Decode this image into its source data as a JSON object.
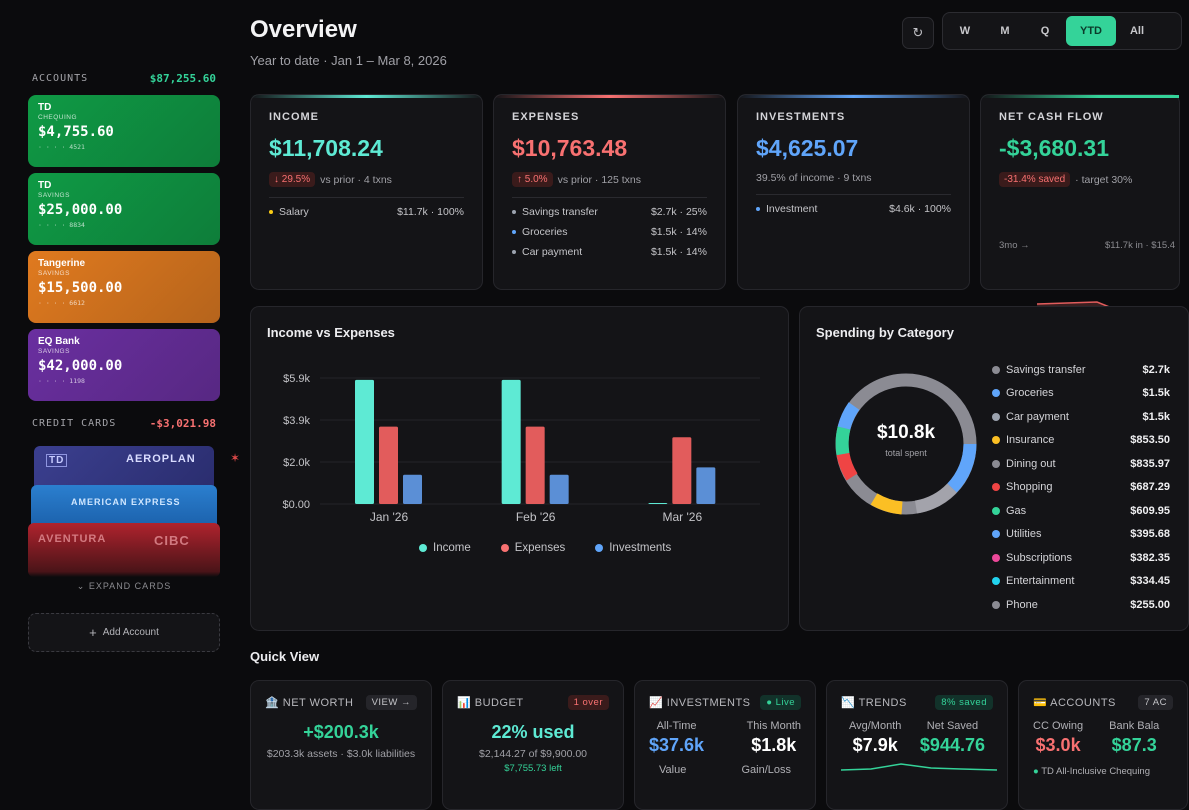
{
  "sidebar": {
    "accounts_label": "ACCOUNTS",
    "accounts_total": "$87,255.60",
    "accounts": [
      {
        "bank": "TD",
        "type": "CHEQUING",
        "balance": "$4,755.60",
        "number": "· · · · 4521",
        "color": "#0f9a45"
      },
      {
        "bank": "TD",
        "type": "SAVINGS",
        "balance": "$25,000.00",
        "number": "· · · · 8834",
        "color": "#0f9a45"
      },
      {
        "bank": "Tangerine",
        "type": "SAVINGS",
        "balance": "$15,500.00",
        "number": "· · · · 6612",
        "color": "#e07a1f"
      },
      {
        "bank": "EQ Bank",
        "type": "SAVINGS",
        "balance": "$42,000.00",
        "number": "· · · · 1198",
        "color": "#6a2fa0"
      }
    ],
    "credit_label": "CREDIT CARDS",
    "credit_total": "-$3,021.98",
    "credit_cards": [
      {
        "brand": "AEROPLAN",
        "logo": "TD"
      },
      {
        "brand": "AMERICAN EXPRESS"
      },
      {
        "brand": "AVENTURA",
        "logo": "CIBC"
      }
    ],
    "expand_label": "EXPAND CARDS",
    "add_account_label": "Add Account"
  },
  "header": {
    "title": "Overview",
    "subtitle": "Year to date · Jan 1 – Mar 8, 2026",
    "refresh_icon": "↻",
    "periods": [
      "W",
      "M",
      "Q",
      "YTD",
      "All"
    ],
    "active_period": "YTD"
  },
  "stats": {
    "income": {
      "label": "INCOME",
      "value": "$11,708.24",
      "change": "29.5%",
      "meta": "vs prior · 4 txns",
      "rows": [
        {
          "name": "Salary",
          "value": "$11.7k · 100%",
          "color": "#facc15"
        }
      ]
    },
    "expenses": {
      "label": "EXPENSES",
      "value": "$10,763.48",
      "change": "5.0%",
      "meta": "vs prior · 125 txns",
      "rows": [
        {
          "name": "Savings transfer",
          "value": "$2.7k · 25%",
          "color": "#9ca3af"
        },
        {
          "name": "Groceries",
          "value": "$1.5k · 14%",
          "color": "#60a5fa"
        },
        {
          "name": "Car payment",
          "value": "$1.5k · 14%",
          "color": "#9ca3af"
        }
      ]
    },
    "investments": {
      "label": "INVESTMENTS",
      "value": "$4,625.07",
      "meta": "39.5% of income · 9 txns",
      "rows": [
        {
          "name": "Investment",
          "value": "$4.6k · 100%",
          "color": "#60a5fa"
        }
      ]
    },
    "netflow": {
      "label": "NET CASH FLOW",
      "value": "-$3,680.31",
      "saved": "-31.4% saved",
      "target": "· target 30%",
      "footer_left": "3mo →",
      "footer_right": "$11.7k in · $15.4"
    }
  },
  "colors": {
    "income": "#5eead4",
    "expenses": "#f87171",
    "investments": "#60a5fa",
    "netflow": "#34d399"
  },
  "income_vs_expenses": {
    "title": "Income vs Expenses",
    "chart_data": {
      "type": "bar",
      "categories": [
        "Jan '26",
        "Feb '26",
        "Mar '26"
      ],
      "series": [
        {
          "name": "Income",
          "values": [
            5853,
            5855,
            0
          ],
          "color": "#5eead4"
        },
        {
          "name": "Expenses",
          "values": [
            3650,
            3650,
            3150
          ],
          "color": "#e25c5c"
        },
        {
          "name": "Investments",
          "values": [
            1380,
            1380,
            1730
          ],
          "color": "#5b8fd6"
        }
      ],
      "ylim": [
        0,
        5853
      ],
      "yticks": [
        "$5.9k",
        "$3.9k",
        "$2.0k",
        "$0.00"
      ],
      "legend": "bottom"
    }
  },
  "spending": {
    "title": "Spending by Category",
    "center_value": "$10.8k",
    "center_label": "total spent",
    "categories": [
      {
        "name": "Savings transfer",
        "value": "$2.7k",
        "color": "#8b8b93"
      },
      {
        "name": "Groceries",
        "value": "$1.5k",
        "color": "#60a5fa"
      },
      {
        "name": "Car payment",
        "value": "$1.5k",
        "color": "#9ca3af"
      },
      {
        "name": "Insurance",
        "value": "$853.50",
        "color": "#fbbf24"
      },
      {
        "name": "Dining out",
        "value": "$835.97",
        "color": "#8b8b93"
      },
      {
        "name": "Shopping",
        "value": "$687.29",
        "color": "#ef4444"
      },
      {
        "name": "Gas",
        "value": "$609.95",
        "color": "#34d399"
      },
      {
        "name": "Utilities",
        "value": "$395.68",
        "color": "#60a5fa"
      },
      {
        "name": "Subscriptions",
        "value": "$382.35",
        "color": "#ec4899"
      },
      {
        "name": "Entertainment",
        "value": "$334.45",
        "color": "#22d3ee"
      },
      {
        "name": "Phone",
        "value": "$255.00",
        "color": "#8b8b93"
      }
    ]
  },
  "quick_view": {
    "title": "Quick View",
    "net_worth": {
      "icon": "🏦",
      "label": "NET WORTH",
      "badge": "VIEW →",
      "value": "+$200.3k",
      "detail": "$203.3k assets · $3.0k liabilities"
    },
    "budget": {
      "icon": "📊",
      "label": "BUDGET",
      "badge": "1 over",
      "value": "22% used",
      "detail": "$2,144.27 of $9,900.00",
      "left": "$7,755.73 left"
    },
    "investments": {
      "icon": "📈",
      "label": "INVESTMENTS",
      "badge": "● Live",
      "k1": "All-Time",
      "v1": "$37.6k",
      "k2": "This Month",
      "v2": "$1.8k",
      "k3": "Value",
      "k4": "Gain/Loss"
    },
    "trends": {
      "icon": "📉",
      "label": "TRENDS",
      "badge": "8% saved",
      "k1": "Avg/Month",
      "v1": "$7.9k",
      "k2": "Net Saved",
      "v2": "$944.76"
    },
    "accounts": {
      "icon": "💳",
      "label": "ACCOUNTS",
      "badge": "7 AC",
      "k1": "CC Owing",
      "v1": "$3.0k",
      "k2": "Bank Bala",
      "v2": "$87.3",
      "footer": "TD All-Inclusive Chequing"
    }
  }
}
